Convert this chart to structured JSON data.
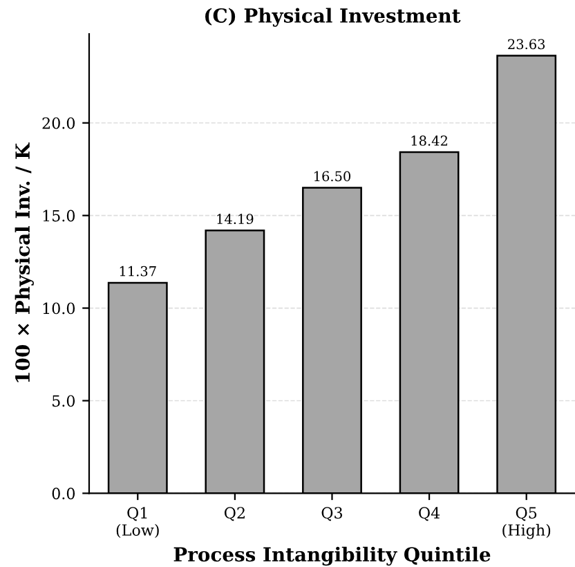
{
  "chart_data": {
    "type": "bar",
    "title": "(C) Physical Investment",
    "xlabel": "Process Intangibility Quintile",
    "ylabel": "100 × Physical Inv. / K",
    "categories": [
      "Q1\n(Low)",
      "Q2",
      "Q3",
      "Q4",
      "Q5\n(High)"
    ],
    "values": [
      11.37,
      14.19,
      16.5,
      18.42,
      23.63
    ],
    "color": "#a6a6a6",
    "value_labels": [
      "11.37",
      "14.19",
      "16.50",
      "18.42",
      "23.63"
    ],
    "ylim": [
      0,
      24.8
    ],
    "yticks": [
      {
        "value": 0,
        "label": "0.0"
      },
      {
        "value": 5,
        "label": "5.0"
      },
      {
        "value": 10,
        "label": "10.0"
      },
      {
        "value": 15,
        "label": "15.0"
      },
      {
        "value": 20,
        "label": "20.0"
      }
    ],
    "grid": "y",
    "legend": false
  }
}
